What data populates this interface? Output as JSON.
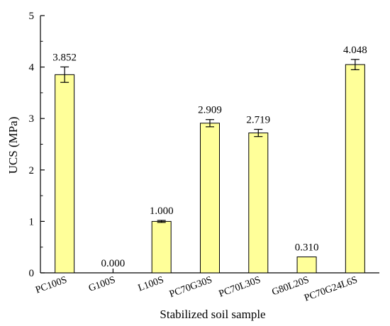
{
  "chart_data": {
    "type": "bar",
    "xlabel": "Stabilized soil sample",
    "ylabel": "UCS (MPa)",
    "ylim": [
      0,
      5
    ],
    "yticks": [
      0,
      1,
      2,
      3,
      4,
      5
    ],
    "categories": [
      "PC100S",
      "G100S",
      "L100S",
      "PC70G30S",
      "PC70L30S",
      "G80L20S",
      "PC70G24L6S"
    ],
    "values": [
      3.852,
      0.0,
      1.0,
      2.909,
      2.719,
      0.31,
      4.048
    ],
    "value_labels": [
      "3.852",
      "0.000",
      "1.000",
      "2.909",
      "2.719",
      "0.310",
      "4.048"
    ],
    "errors": [
      0.15,
      0,
      0.02,
      0.07,
      0.07,
      0,
      0.1
    ],
    "bar_color": "#ffff99",
    "bar_edge_color": "#000000",
    "grid": false,
    "legend": "none"
  }
}
